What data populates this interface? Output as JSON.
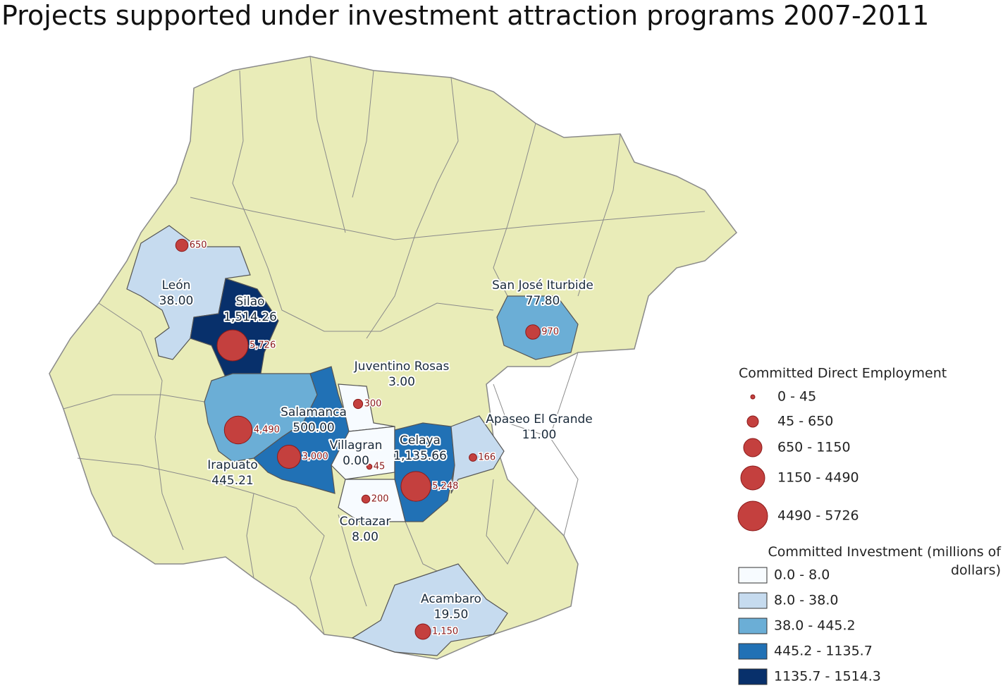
{
  "title": "Projects supported under investment attraction programs 2007-2011",
  "municipalities": [
    {
      "name": "León",
      "investment": {
        "value": 38,
        "label": "38.00"
      },
      "employment": 650,
      "fill": "#c6dbef"
    },
    {
      "name": "Silao",
      "investment": {
        "value": 1514.26,
        "label": "1,514.26"
      },
      "employment": {
        "value": 5726,
        "label": "5,726"
      },
      "fill": "#08306b"
    },
    {
      "name": "Irapuato",
      "investment": {
        "value": 445.21,
        "label": "445.21"
      },
      "employment": {
        "value": 4490,
        "label": "4,490"
      },
      "fill": "#6baed6"
    },
    {
      "name": "Salamanca",
      "investment": {
        "value": 500,
        "label": "500.00"
      },
      "employment": {
        "value": 3000,
        "label": "3,000"
      },
      "fill": "#2171b5"
    },
    {
      "name": "Juventino Rosas",
      "investment": {
        "value": 3,
        "label": "3.00"
      },
      "employment": 300,
      "fill": "#f7fbff"
    },
    {
      "name": "Villagran",
      "investment": {
        "value": 0,
        "label": "0.00"
      },
      "employment": 45,
      "fill": "#f7fbff"
    },
    {
      "name": "Celaya",
      "investment": {
        "value": 1135.66,
        "label": "1,135.66"
      },
      "employment": {
        "value": 5248,
        "label": "5,248"
      },
      "fill": "#2171b5"
    },
    {
      "name": "Cortazar",
      "investment": {
        "value": 8,
        "label": "8.00"
      },
      "employment": 200,
      "fill": "#f7fbff"
    },
    {
      "name": "Apaseo El Grande",
      "investment": {
        "value": 11,
        "label": "11.00"
      },
      "employment": 166,
      "fill": "#c6dbef"
    },
    {
      "name": "San José Iturbide",
      "investment": {
        "value": 77.8,
        "label": "77.80"
      },
      "employment": 970,
      "fill": "#6baed6"
    },
    {
      "name": "Acambaro",
      "investment": {
        "value": 19.5,
        "label": "19.50"
      },
      "employment": {
        "value": 1150,
        "label": "1,150"
      },
      "fill": "#c6dbef"
    }
  ],
  "employment_legend": {
    "title": "Committed Direct Employment",
    "classes": [
      "0 - 45",
      "45 - 650",
      "650 - 1150",
      "1150 - 4490",
      "4490 - 5726"
    ]
  },
  "investment_legend": {
    "title": "Committed Investment (millions of dollars)",
    "classes": [
      {
        "label": "0.0 - 8.0",
        "color": "#f7fbff"
      },
      {
        "label": "8.0 - 38.0",
        "color": "#c6dbef"
      },
      {
        "label": "38.0 - 445.2",
        "color": "#6baed6"
      },
      {
        "label": "445.2 - 1135.7",
        "color": "#2171b5"
      },
      {
        "label": "1135.7 - 1514.3",
        "color": "#08306b"
      }
    ]
  }
}
